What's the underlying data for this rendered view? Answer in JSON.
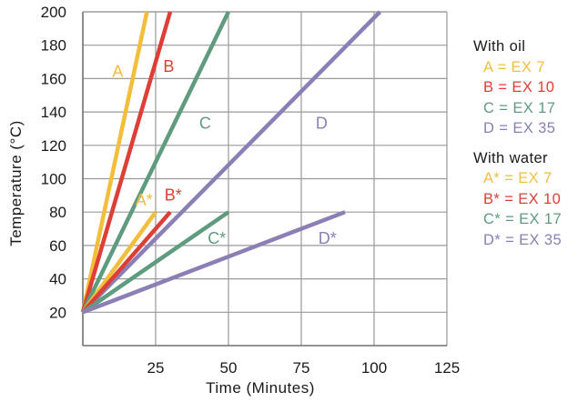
{
  "chart_data": {
    "type": "line",
    "xlabel": "Time (Minutes)",
    "ylabel": "Temperature (°C)",
    "xlim": [
      0,
      125
    ],
    "ylim": [
      0,
      200
    ],
    "x_ticks": [
      "25",
      "50",
      "75",
      "100",
      "125"
    ],
    "y_ticks": [
      "20",
      "40",
      "60",
      "80",
      "100",
      "120",
      "140",
      "160",
      "180",
      "200"
    ],
    "grid": true,
    "legend_placement": "right",
    "series": [
      {
        "name": "A",
        "group": "With oil",
        "color": "#f2be3c",
        "x": [
          0,
          22
        ],
        "y": [
          20,
          200
        ],
        "label": "A",
        "label_at": [
          12,
          161
        ]
      },
      {
        "name": "B",
        "group": "With oil",
        "color": "#dd3f36",
        "x": [
          0,
          30
        ],
        "y": [
          20,
          200
        ],
        "label": "B",
        "label_at": [
          29.5,
          164
        ]
      },
      {
        "name": "C",
        "group": "With oil",
        "color": "#5e9b7f",
        "x": [
          0,
          50
        ],
        "y": [
          20,
          200
        ],
        "label": "C",
        "label_at": [
          42,
          130
        ]
      },
      {
        "name": "D",
        "group": "With oil",
        "color": "#8b7fb5",
        "x": [
          0,
          102
        ],
        "y": [
          20,
          200
        ],
        "label": "D",
        "label_at": [
          82,
          130
        ]
      },
      {
        "name": "A*",
        "group": "With water",
        "color": "#f2be3c",
        "x": [
          0,
          25
        ],
        "y": [
          20,
          80
        ],
        "label": "A*",
        "label_at": [
          21,
          84
        ]
      },
      {
        "name": "B*",
        "group": "With water",
        "color": "#dd3f36",
        "x": [
          0,
          30
        ],
        "y": [
          20,
          80
        ],
        "label": "B*",
        "label_at": [
          31,
          87
        ]
      },
      {
        "name": "C*",
        "group": "With water",
        "color": "#5e9b7f",
        "x": [
          0,
          50
        ],
        "y": [
          20,
          80
        ],
        "label": "C*",
        "label_at": [
          46,
          61
        ]
      },
      {
        "name": "D*",
        "group": "With water",
        "color": "#8b7fb5",
        "x": [
          0,
          90
        ],
        "y": [
          20,
          80
        ],
        "label": "D*",
        "label_at": [
          84,
          61
        ]
      }
    ],
    "legend": [
      {
        "heading": "With oil",
        "items": [
          {
            "text": "A = EX 7",
            "color": "#f2be3c"
          },
          {
            "text": "B = EX 10",
            "color": "#dd3f36"
          },
          {
            "text": "C = EX 17",
            "color": "#5e9b7f"
          },
          {
            "text": "D = EX 35",
            "color": "#8b7fb5"
          }
        ]
      },
      {
        "heading": "With water",
        "items": [
          {
            "text": "A* = EX 7",
            "color": "#f2be3c"
          },
          {
            "text": "B* = EX 10",
            "color": "#dd3f36"
          },
          {
            "text": "C* = EX 17",
            "color": "#5e9b7f"
          },
          {
            "text": "D* = EX 35",
            "color": "#8b7fb5"
          }
        ]
      }
    ]
  }
}
